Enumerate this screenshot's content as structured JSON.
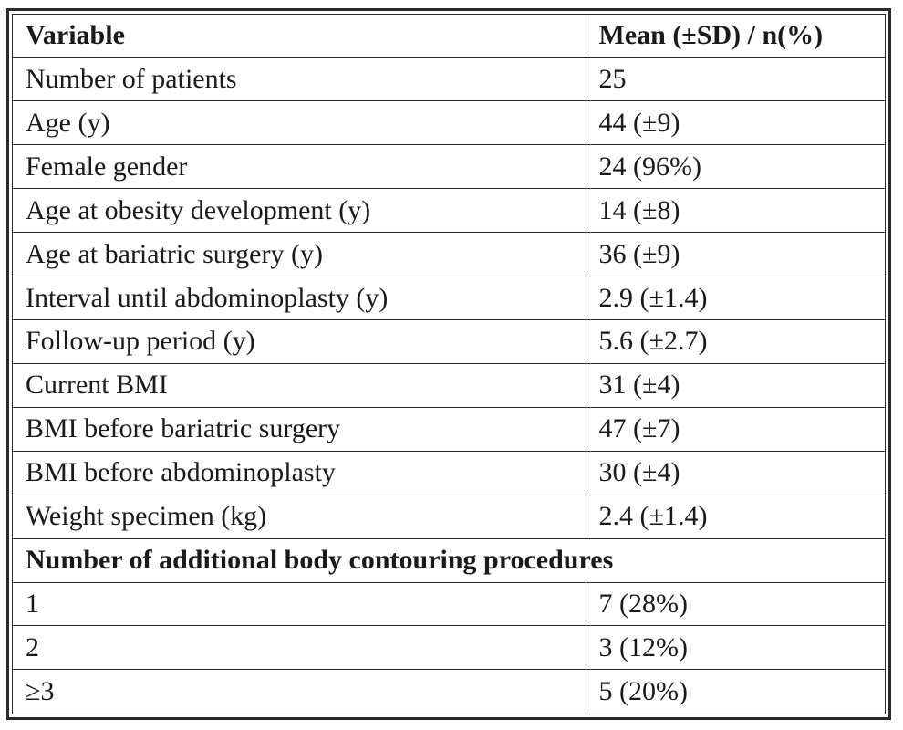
{
  "table": {
    "headers": [
      "Variable",
      "Mean (±SD) / n(%)"
    ],
    "rows": [
      [
        "Number of patients",
        "25"
      ],
      [
        "Age (y)",
        "44 (±9)"
      ],
      [
        "Female gender",
        "24 (96%)"
      ],
      [
        "Age at obesity development (y)",
        "14 (±8)"
      ],
      [
        "Age at bariatric surgery (y)",
        "36 (±9)"
      ],
      [
        "Interval until abdominoplasty (y)",
        "2.9 (±1.4)"
      ],
      [
        "Follow-up period (y)",
        "5.6 (±2.7)"
      ],
      [
        "Current BMI",
        "31 (±4)"
      ],
      [
        "BMI before bariatric surgery",
        "47 (±7)"
      ],
      [
        "BMI before abdominoplasty",
        "30 (±4)"
      ],
      [
        "Weight specimen (kg)",
        "2.4 (±1.4)"
      ]
    ],
    "group_heading": "Number of additional body contouring procedures",
    "group_rows": [
      [
        "1",
        "7 (28%)"
      ],
      [
        "2",
        "3 (12%)"
      ],
      [
        "≥3",
        "5 (20%)"
      ]
    ]
  }
}
